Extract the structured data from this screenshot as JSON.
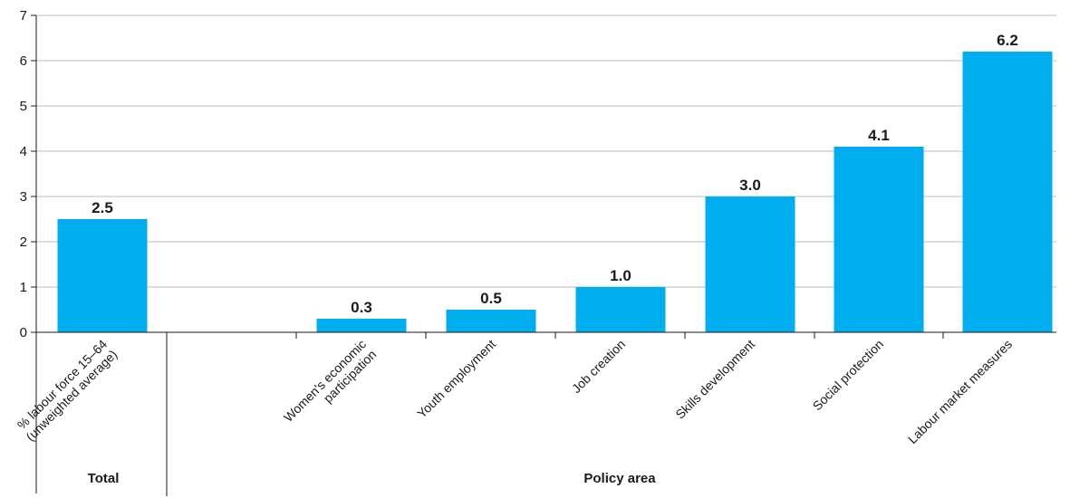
{
  "chart_data": {
    "type": "bar",
    "title": "",
    "xlabel": "",
    "ylabel": "",
    "ylim": [
      0,
      7
    ],
    "yticks": [
      0,
      1,
      2,
      3,
      4,
      5,
      6,
      7
    ],
    "grid": true,
    "bar_color": "#00AEEF",
    "categories": [
      "% labour force 15–64 (unweighted average)",
      "Women's economic participation",
      "Youth employment",
      "Job creation",
      "Skills development",
      "Social protection",
      "Labour market measures"
    ],
    "values": [
      2.5,
      0.3,
      0.5,
      1.0,
      3.0,
      4.1,
      6.2
    ],
    "value_labels": [
      "2.5",
      "0.3",
      "0.5",
      "1.0",
      "3.0",
      "4.1",
      "6.2"
    ],
    "groups": [
      {
        "label": "Total",
        "categories": [
          "% labour force 15–64 (unweighted average)"
        ]
      },
      {
        "label": "Policy area",
        "categories": [
          "Women's economic participation",
          "Youth employment",
          "Job creation",
          "Skills development",
          "Social protection",
          "Labour market measures"
        ]
      }
    ]
  }
}
